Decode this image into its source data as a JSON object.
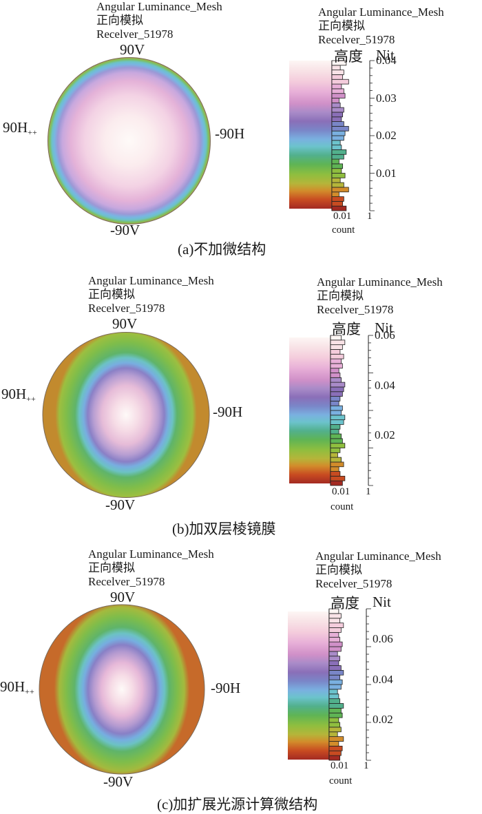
{
  "panels": [
    {
      "title_lines": [
        "Angular Luminance_Mesh",
        "正向模拟",
        "Recelver_51978"
      ],
      "polar": {
        "top": "90V",
        "bottom": "-90V",
        "left": "90H",
        "left_marker": "++",
        "right": "-90H"
      },
      "legend": {
        "title": "Angular Luminance_Mesh",
        "sub1": "正向模拟",
        "sub2": "Recelver_51978",
        "left_label": "高度",
        "right_label": "Nit",
        "count_label": "count",
        "count_ticks": [
          "0.01",
          "1"
        ]
      },
      "caption": "(a)不加微结构",
      "chart_data": {
        "type": "heatmap",
        "map_shape": "circle",
        "center_luminance": 0.04,
        "colorscale_range": [
          0,
          0.04
        ],
        "ticks": [
          0.01,
          0.02,
          0.03,
          0.04
        ],
        "tick_labels": [
          "0.01",
          "0.02",
          "0.03",
          "0.04"
        ],
        "histogram_counts": [
          0.6,
          0.45,
          0.5,
          0.3,
          0.7,
          0.5,
          0.35,
          0.55,
          0.4,
          0.45,
          0.3,
          0.5,
          0.6,
          0.4,
          0.35,
          0.5,
          0.55,
          0.7,
          0.5,
          0.4,
          0.45,
          0.5,
          0.35,
          0.3,
          0.55,
          0.5,
          0.4,
          0.7,
          0.45,
          0.5,
          0.35,
          0.6
        ]
      }
    },
    {
      "title_lines": [
        "Angular Luminance_Mesh",
        "正向模拟",
        "Recelver_51978"
      ],
      "polar": {
        "top": "90V",
        "bottom": "-90V",
        "left": "90H",
        "left_marker": "++",
        "right": "-90H"
      },
      "legend": {
        "title": "Angular Luminance_Mesh",
        "sub1": "正向模拟",
        "sub2": "Recelver_51978",
        "left_label": "高度",
        "right_label": "Nit",
        "count_label": "count",
        "count_ticks": [
          "0.01",
          "1"
        ]
      },
      "caption": "(b)加双层棱镜膜",
      "chart_data": {
        "type": "heatmap",
        "map_shape": "circle",
        "center_luminance": 0.06,
        "colorscale_range": [
          0,
          0.06
        ],
        "ticks": [
          0.02,
          0.04,
          0.06
        ],
        "tick_labels": [
          "0.02",
          "0.04",
          "0.06"
        ],
        "histogram_counts": [
          0.5,
          0.6,
          0.4,
          0.35,
          0.55,
          0.45,
          0.3,
          0.4,
          0.6,
          0.5,
          0.45,
          0.35,
          0.4,
          0.55,
          0.6,
          0.45,
          0.5,
          0.35,
          0.4,
          0.5,
          0.55,
          0.6,
          0.45,
          0.4,
          0.35,
          0.5,
          0.45,
          0.55,
          0.4,
          0.5,
          0.6,
          0.45
        ]
      }
    },
    {
      "title_lines": [
        "Angular Luminance_Mesh",
        "正向模拟",
        "Recelver_51978"
      ],
      "polar": {
        "top": "90V",
        "bottom": "-90V",
        "left": "90H",
        "left_marker": "++",
        "right": "-90H"
      },
      "legend": {
        "title": "Angular Luminance_Mesh",
        "sub1": "正向模拟",
        "sub2": "Recelver_51978",
        "left_label": "高度",
        "right_label": "Nit",
        "count_label": "count",
        "count_ticks": [
          "0.01",
          "1"
        ]
      },
      "caption": "(c)加扩展光源计算微结构",
      "chart_data": {
        "type": "heatmap",
        "map_shape": "circle",
        "center_luminance": 0.075,
        "colorscale_range": [
          0,
          0.075
        ],
        "ticks": [
          0.02,
          0.04,
          0.06
        ],
        "tick_labels": [
          "0.02",
          "0.04",
          "0.06"
        ],
        "histogram_counts": [
          0.45,
          0.5,
          0.55,
          0.4,
          0.6,
          0.35,
          0.5,
          0.45,
          0.4,
          0.55,
          0.5,
          0.6,
          0.45,
          0.4,
          0.35,
          0.5,
          0.55,
          0.45,
          0.6,
          0.5,
          0.4,
          0.45,
          0.35,
          0.5,
          0.55,
          0.45,
          0.4,
          0.5,
          0.6,
          0.45,
          0.5,
          0.4
        ]
      }
    }
  ],
  "colors": {
    "scale": [
      "#a32a22",
      "#c84b21",
      "#d28c2b",
      "#b5b53a",
      "#8fbe3f",
      "#5fb455",
      "#52b08c",
      "#6cc3cc",
      "#7ab0e0",
      "#7a86c8",
      "#8a6fb8",
      "#a98bc8",
      "#d090c8",
      "#e8b0d8",
      "#f4ccdc",
      "#f8e2e6",
      "#fdf6f4"
    ]
  }
}
